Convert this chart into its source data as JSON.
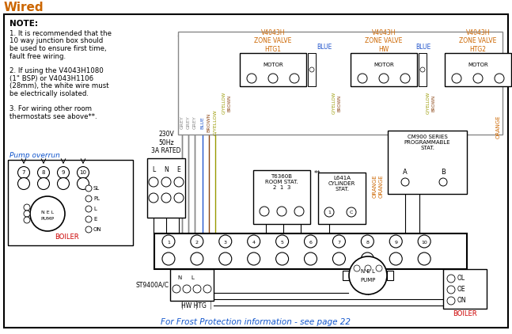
{
  "title": "Wired",
  "title_color": "#cc6600",
  "bg_color": "#ffffff",
  "border_color": "#000000",
  "note_lines": [
    "NOTE:",
    "1. It is recommended that the",
    "10 way junction box should",
    "be used to ensure first time,",
    "fault free wiring.",
    " ",
    "2. If using the V4043H1080",
    "(1\" BSP) or V4043H1106",
    "(28mm), the white wire must",
    "be electrically isolated.",
    " ",
    "3. For wiring other room",
    "thermostats see above**."
  ],
  "footer": "For Frost Protection information - see page 22",
  "footer_color": "#1155cc",
  "zone_valve_labels": [
    "V4043H\nZONE VALVE\nHTG1",
    "V4043H\nZONE VALVE\nHW",
    "V4043H\nZONE VALVE\nHTG2"
  ],
  "zone_valve_color": "#cc6600",
  "power_label": "230V\n50Hz\n3A RATED",
  "grey": "#888888",
  "blue": "#2255cc",
  "brown": "#8B4513",
  "gyellow": "#999900",
  "orange": "#cc6600",
  "black": "#000000",
  "red": "#cc0000",
  "pump_overrun_color": "#1155cc",
  "junction_nums": [
    "1",
    "2",
    "3",
    "4",
    "5",
    "6",
    "7",
    "8",
    "9",
    "10"
  ],
  "pump_box_nums": [
    "7",
    "8",
    "9",
    "10"
  ]
}
